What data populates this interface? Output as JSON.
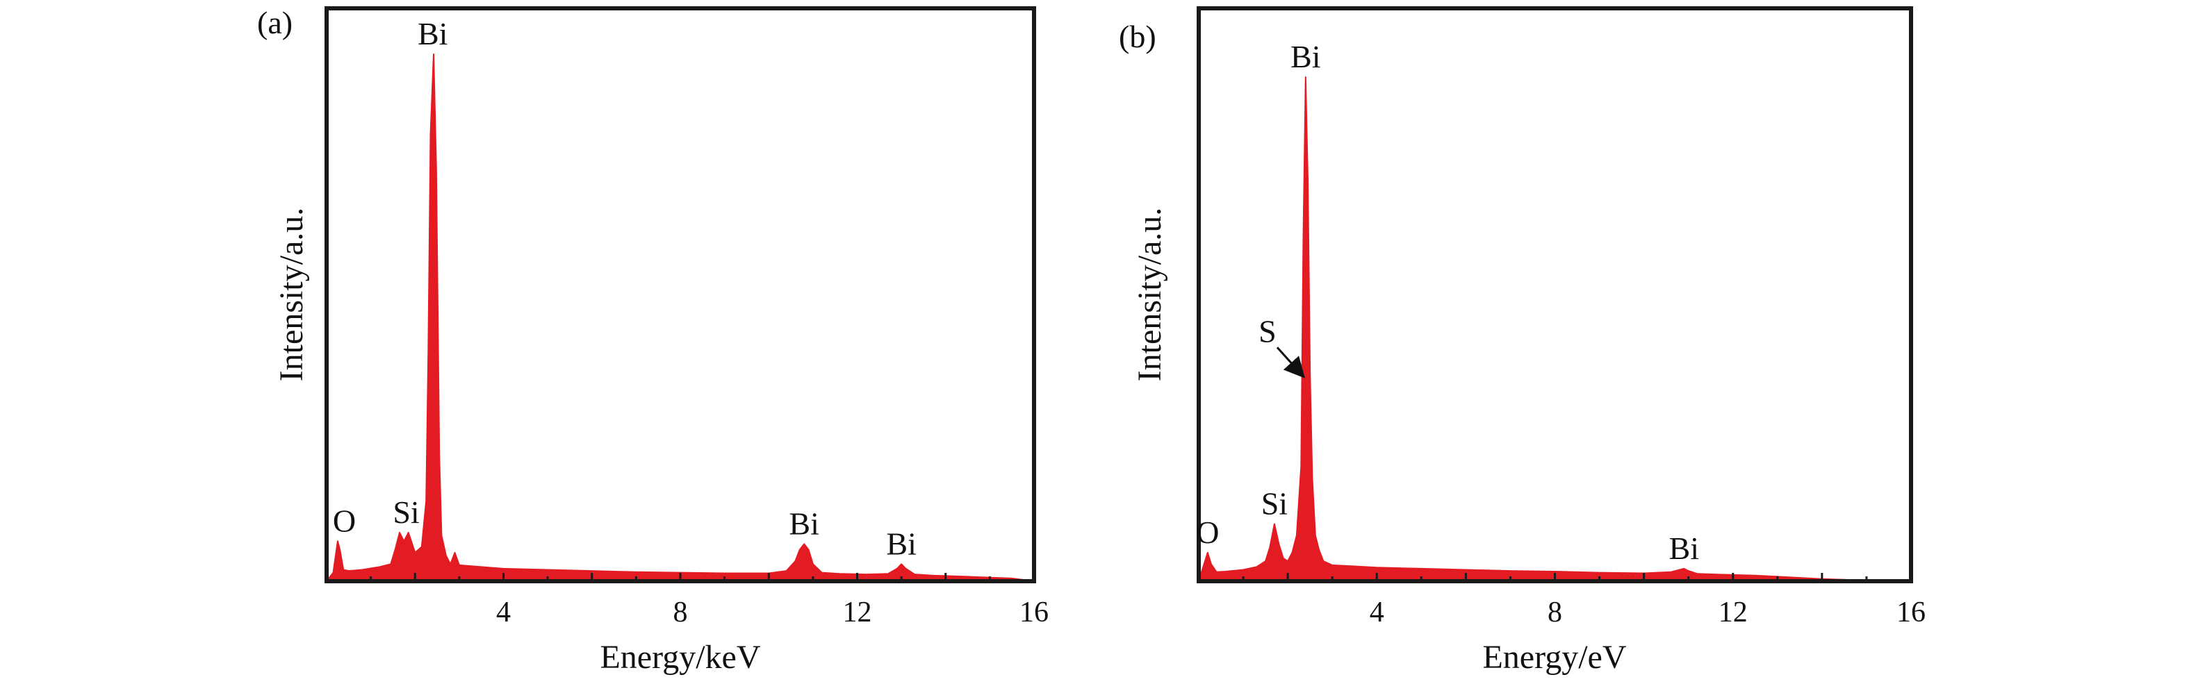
{
  "figure": {
    "colors": {
      "spectrum": "#e31b23",
      "axes": "#1a1a1a",
      "background": "#ffffff"
    }
  },
  "chart_data": [
    {
      "type": "area",
      "panel_label": "(a)",
      "xlabel": "Energy/keV",
      "ylabel": "Intensity/a.u.",
      "xlim": [
        0,
        16
      ],
      "ylim": [
        0,
        100
      ],
      "xticks": [
        4,
        8,
        12,
        16
      ],
      "grid": false,
      "legend": "none",
      "series": [
        {
          "x": [
            0,
            0.15,
            0.25,
            0.3,
            0.38,
            0.5,
            0.8,
            1.2,
            1.45,
            1.55,
            1.65,
            1.75,
            1.85,
            2.0,
            2.15,
            2.25,
            2.3,
            2.35,
            2.42,
            2.48,
            2.55,
            2.6,
            2.7,
            2.8,
            2.9,
            3.0,
            3.5,
            4.0,
            5.0,
            6.0,
            7.0,
            8.0,
            9.0,
            10.0,
            10.4,
            10.6,
            10.7,
            10.8,
            10.9,
            11.0,
            11.2,
            11.6,
            12.2,
            12.7,
            12.9,
            13.0,
            13.1,
            13.3,
            13.7,
            14.5,
            15.5,
            16.0
          ],
          "y": [
            0,
            1.5,
            7.0,
            5.5,
            2.0,
            1.8,
            2.0,
            2.5,
            3.0,
            5.5,
            8.5,
            7.0,
            8.5,
            5.0,
            6.0,
            14.0,
            40.0,
            78.0,
            92.0,
            72.0,
            22.0,
            8.0,
            4.5,
            3.0,
            5.0,
            2.8,
            2.5,
            2.2,
            2.0,
            1.8,
            1.6,
            1.5,
            1.4,
            1.4,
            1.8,
            3.5,
            5.5,
            6.5,
            5.5,
            3.0,
            1.5,
            1.3,
            1.2,
            1.3,
            2.2,
            3.0,
            2.2,
            1.2,
            1.0,
            0.8,
            0.5,
            0
          ]
        }
      ],
      "annotations": [
        {
          "text": "O",
          "x": 0.4,
          "y": 7.0
        },
        {
          "text": "Si",
          "x": 1.8,
          "y": 8.5
        },
        {
          "text": "Bi",
          "x": 2.4,
          "y": 92.0
        },
        {
          "text": "Bi",
          "x": 10.8,
          "y": 6.5
        },
        {
          "text": "Bi",
          "x": 13.0,
          "y": 3.0
        }
      ]
    },
    {
      "type": "area",
      "panel_label": "(b)",
      "xlabel": "Energy/eV",
      "ylabel": "Intensity/a.u.",
      "xlim": [
        0,
        16
      ],
      "ylim": [
        0,
        100
      ],
      "xticks": [
        4,
        8,
        12,
        16
      ],
      "grid": false,
      "legend": "none",
      "series": [
        {
          "x": [
            0,
            0.1,
            0.2,
            0.28,
            0.4,
            0.6,
            1.0,
            1.3,
            1.5,
            1.6,
            1.7,
            1.8,
            1.9,
            2.0,
            2.1,
            2.2,
            2.3,
            2.35,
            2.4,
            2.45,
            2.5,
            2.55,
            2.62,
            2.7,
            2.8,
            3.0,
            3.5,
            4.0,
            5.0,
            6.0,
            7.0,
            8.0,
            9.0,
            10.0,
            10.6,
            10.9,
            11.0,
            11.2,
            11.6,
            12.0,
            12.5,
            13.0,
            14.0,
            14.8,
            16.0
          ],
          "y": [
            0,
            2.5,
            5.0,
            3.0,
            1.6,
            1.7,
            2.0,
            2.5,
            3.5,
            6.0,
            10.0,
            6.5,
            4.0,
            3.5,
            5.0,
            8.0,
            20.0,
            60.0,
            88.0,
            70.0,
            36.0,
            18.0,
            8.0,
            5.5,
            3.5,
            2.8,
            2.6,
            2.4,
            2.2,
            2.0,
            1.8,
            1.7,
            1.5,
            1.4,
            1.6,
            2.2,
            1.8,
            1.3,
            1.2,
            1.1,
            1.0,
            0.8,
            0.4,
            0.2,
            0
          ]
        }
      ],
      "annotations": [
        {
          "text": "O",
          "x": 0.2,
          "y": 5.0
        },
        {
          "text": "Si",
          "x": 1.7,
          "y": 10.0
        },
        {
          "text": "Bi",
          "x": 2.4,
          "y": 88.0
        },
        {
          "text": "S",
          "x": 2.2,
          "y": 35.0
        },
        {
          "text": "Bi",
          "x": 10.9,
          "y": 2.2
        }
      ]
    }
  ]
}
